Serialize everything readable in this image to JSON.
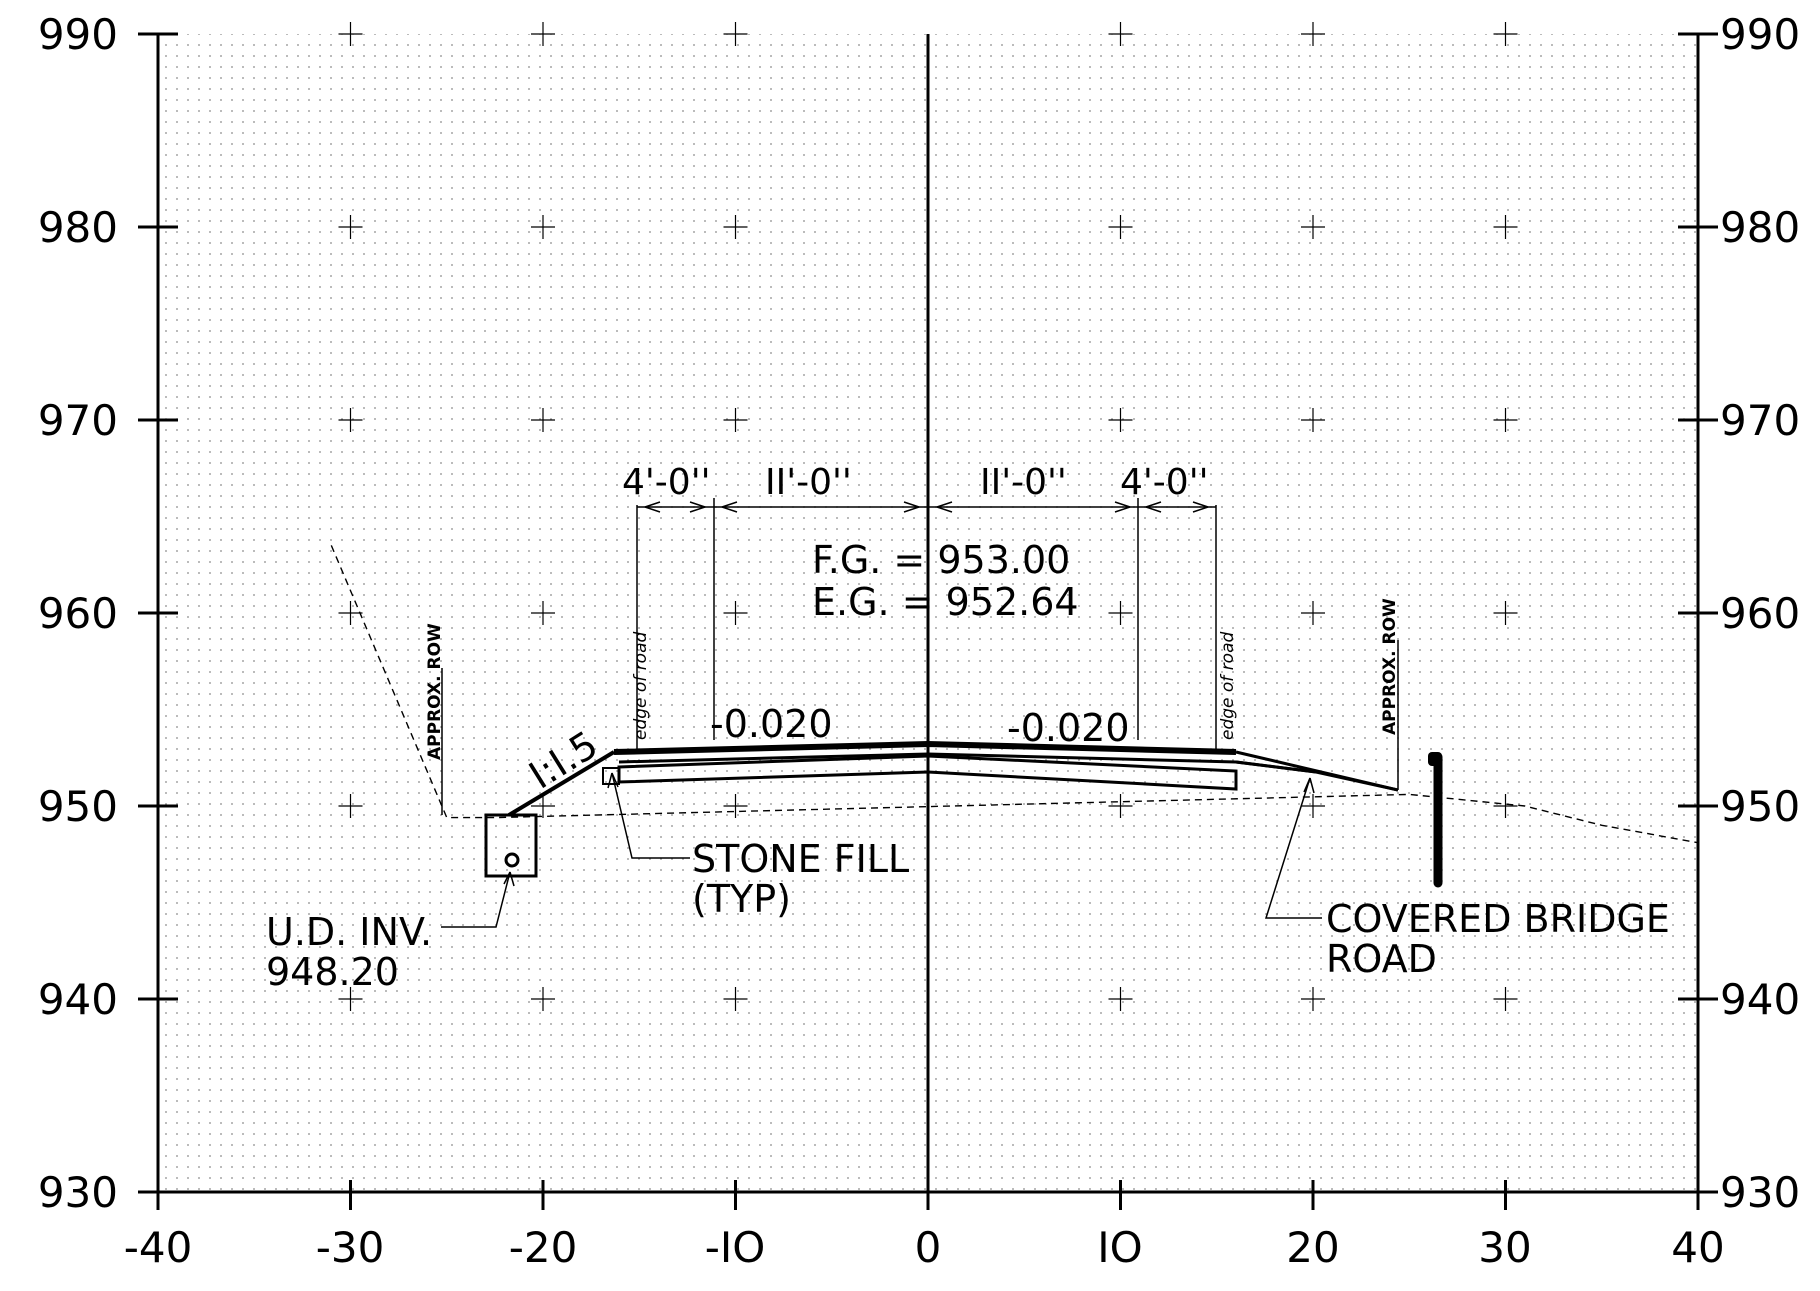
{
  "chart_data": {
    "type": "cross-section",
    "xlim": [
      -40,
      40
    ],
    "ylim": [
      930,
      990
    ],
    "x_ticks": [
      "-40",
      "-30",
      "-20",
      "-IO",
      "0",
      "IO",
      "20",
      "30",
      "40"
    ],
    "y_ticks": [
      "930",
      "940",
      "950",
      "960",
      "970",
      "980",
      "990"
    ],
    "dimensions": [
      "4'-0''",
      "II'-0''",
      "II'-0''",
      "4'-0''"
    ],
    "finished_grade": "F.G. = 953.00",
    "existing_grade": "E.G. = 952.64",
    "slopes": [
      "-0.020",
      "-0.020"
    ],
    "side_slope": "I:I.5",
    "edge_labels": [
      "edge of road",
      "edge of road"
    ],
    "row_labels": [
      "APPROX. ROW",
      "APPROX. ROW"
    ],
    "callouts": {
      "stone_fill": [
        "STONE FILL",
        "(TYP)"
      ],
      "underdrain": [
        "U.D. INV.",
        "948.20"
      ],
      "road": [
        "COVERED BRIDGE",
        "ROAD"
      ]
    },
    "finished_grade_profile": [
      [
        -16,
        952.5
      ],
      [
        0,
        953.0
      ],
      [
        16,
        952.4
      ],
      [
        24.5,
        950.7
      ]
    ],
    "existing_ground_profile": [
      [
        -31,
        963.5
      ],
      [
        -25,
        949.4
      ],
      [
        -22.5,
        949.4
      ],
      [
        25,
        950.6
      ],
      [
        31,
        950.0
      ],
      [
        35,
        949.0
      ],
      [
        40,
        948.1
      ]
    ],
    "centerline_x": 0
  }
}
